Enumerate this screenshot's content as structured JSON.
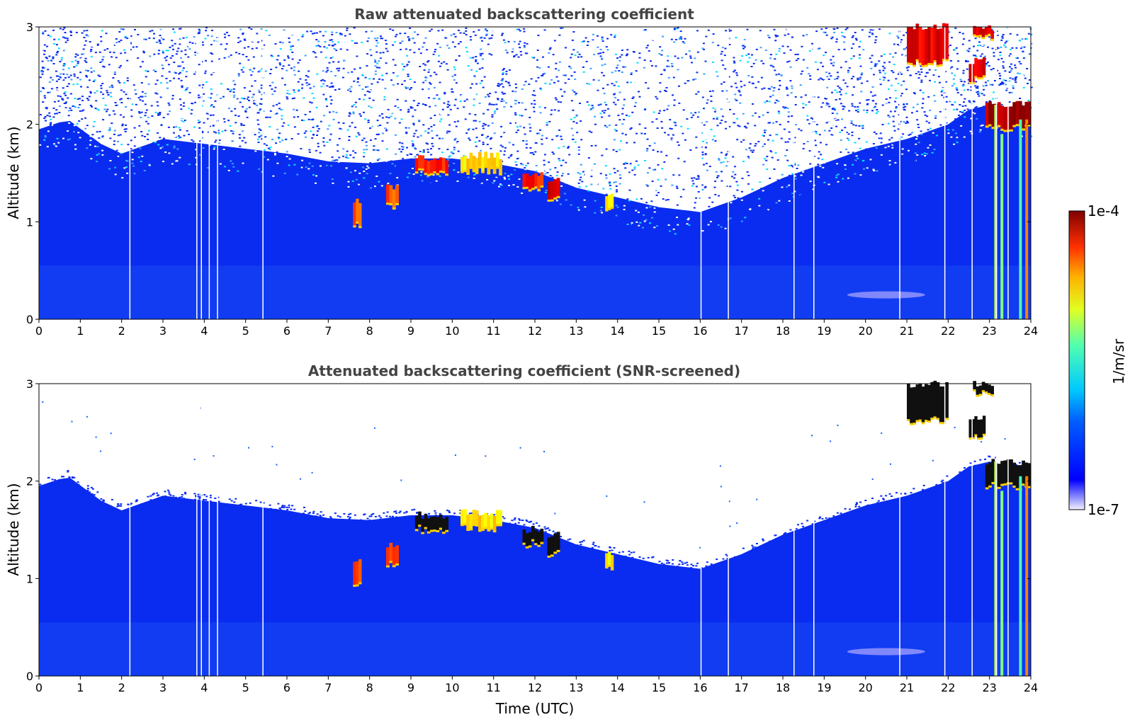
{
  "chart_data": [
    {
      "type": "heatmap",
      "title": "Raw attenuated backscattering coefficient",
      "ylabel": "Altitude (km)",
      "xlabel": "",
      "xlim": [
        0,
        24
      ],
      "ylim": [
        0,
        3
      ],
      "xticks": [
        0,
        1,
        2,
        3,
        4,
        5,
        6,
        7,
        8,
        9,
        10,
        11,
        12,
        13,
        14,
        15,
        16,
        17,
        18,
        19,
        20,
        21,
        22,
        23,
        24
      ],
      "yticks": [
        0,
        1,
        2,
        3
      ],
      "screened": false,
      "noise_floor_km": [
        [
          0,
          1.95
        ],
        [
          0.7,
          2.05
        ],
        [
          1.5,
          1.8
        ],
        [
          2,
          1.7
        ],
        [
          3,
          1.85
        ],
        [
          4,
          1.8
        ],
        [
          5,
          1.75
        ],
        [
          6,
          1.7
        ],
        [
          7,
          1.62
        ],
        [
          8,
          1.6
        ],
        [
          9,
          1.65
        ],
        [
          10,
          1.65
        ],
        [
          11,
          1.6
        ],
        [
          12,
          1.52
        ],
        [
          13,
          1.35
        ],
        [
          14,
          1.25
        ],
        [
          15,
          1.15
        ],
        [
          16,
          1.1
        ],
        [
          17,
          1.25
        ],
        [
          18,
          1.45
        ],
        [
          19,
          1.6
        ],
        [
          20,
          1.75
        ],
        [
          21,
          1.85
        ],
        [
          22,
          2.0
        ],
        [
          22.5,
          2.15
        ],
        [
          23,
          2.2
        ],
        [
          24,
          2.1
        ]
      ],
      "vertical_gaps_utc": [
        2.2,
        3.82,
        3.93,
        4.12,
        4.32,
        5.42,
        16.02,
        16.68,
        18.27,
        18.75,
        20.83,
        21.92,
        22.58,
        23.17,
        23.45
      ],
      "cloud_layers": [
        {
          "x0": 7.6,
          "x1": 7.8,
          "bottom": 0.95,
          "top": 1.2,
          "level": 0.85
        },
        {
          "x0": 8.4,
          "x1": 8.7,
          "bottom": 1.15,
          "top": 1.35,
          "level": 0.85
        },
        {
          "x0": 9.1,
          "x1": 9.9,
          "bottom": 1.5,
          "top": 1.65,
          "level": 0.9
        },
        {
          "x0": 10.2,
          "x1": 11.2,
          "bottom": 1.52,
          "top": 1.68,
          "level": 0.7
        },
        {
          "x0": 11.7,
          "x1": 12.2,
          "bottom": 1.35,
          "top": 1.5,
          "level": 0.9
        },
        {
          "x0": 12.3,
          "x1": 12.6,
          "bottom": 1.25,
          "top": 1.45,
          "level": 0.95
        },
        {
          "x0": 13.7,
          "x1": 13.9,
          "bottom": 1.1,
          "top": 1.25,
          "level": 0.7
        },
        {
          "x0": 21.0,
          "x1": 22.0,
          "bottom": 2.62,
          "top": 3.0,
          "level": 0.95
        },
        {
          "x0": 22.5,
          "x1": 22.9,
          "bottom": 2.45,
          "top": 2.65,
          "level": 0.95
        },
        {
          "x0": 22.6,
          "x1": 23.1,
          "bottom": 2.9,
          "top": 3.0,
          "level": 0.95
        },
        {
          "x0": 22.9,
          "x1": 24.0,
          "bottom": 1.95,
          "top": 2.2,
          "level": 1.0
        }
      ],
      "rain_streaks": [
        {
          "x": 23.15,
          "top": 2.2,
          "level": 0.55
        },
        {
          "x": 23.3,
          "top": 1.9,
          "level": 0.5
        },
        {
          "x": 23.75,
          "top": 2.05,
          "level": 0.45
        },
        {
          "x": 23.9,
          "top": 2.05,
          "level": 0.75
        }
      ]
    },
    {
      "type": "heatmap",
      "title": "Attenuated backscattering coefficient (SNR-screened)",
      "ylabel": "Altitude (km)",
      "xlabel": "Time (UTC)",
      "xlim": [
        0,
        24
      ],
      "ylim": [
        0,
        3
      ],
      "xticks": [
        0,
        1,
        2,
        3,
        4,
        5,
        6,
        7,
        8,
        9,
        10,
        11,
        12,
        13,
        14,
        15,
        16,
        17,
        18,
        19,
        20,
        21,
        22,
        23,
        24
      ],
      "yticks": [
        0,
        1,
        2,
        3
      ],
      "screened": true
    }
  ],
  "colorbar": {
    "label": "1/m/sr",
    "max_label": "1e-4",
    "min_label": "1e-7",
    "scale": "log",
    "colormap": "jet"
  },
  "colors": {
    "background_blue": "#0a2cf0",
    "title_color": "#444444"
  }
}
